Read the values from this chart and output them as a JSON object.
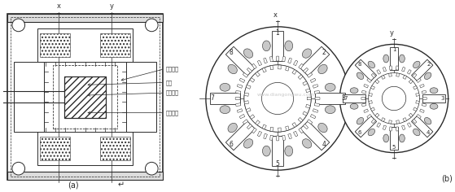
{
  "bg_color": "#ffffff",
  "line_color": "#2a2a2a",
  "watermark": "www.diangongwu.com",
  "watermark_color": "#bbbbbb",
  "label_a": "(a)",
  "label_b": "(b)",
  "labels_left": [
    "定子绕组",
    "转子",
    "定子磁轭",
    "永久磁锤"
  ],
  "axis_labels": [
    "x",
    "y"
  ],
  "stator_numbers_mid": [
    "1",
    "2",
    "3",
    "4",
    "5",
    "6",
    "7",
    "8"
  ],
  "stator_numbers_right": [
    "1",
    "2",
    "3",
    "4",
    "5",
    "6",
    "7",
    "8"
  ],
  "fig_width": 5.59,
  "fig_height": 2.36,
  "dpi": 100
}
